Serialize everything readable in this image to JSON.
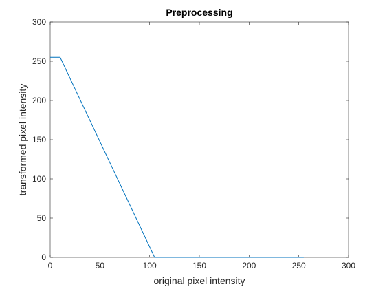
{
  "chart_data": {
    "type": "line",
    "title": "Preprocessing",
    "xlabel": "original pixel intensity",
    "ylabel": "transformed pixel intensity",
    "xlim": [
      0,
      300
    ],
    "ylim": [
      0,
      300
    ],
    "xticks": [
      0,
      50,
      100,
      150,
      200,
      250,
      300
    ],
    "yticks": [
      0,
      50,
      100,
      150,
      200,
      250,
      300
    ],
    "grid": false,
    "box": true,
    "series": [
      {
        "x": [
          0,
          10,
          105,
          255
        ],
        "y": [
          255,
          255,
          0,
          0
        ],
        "color": "#0072BD"
      }
    ]
  }
}
